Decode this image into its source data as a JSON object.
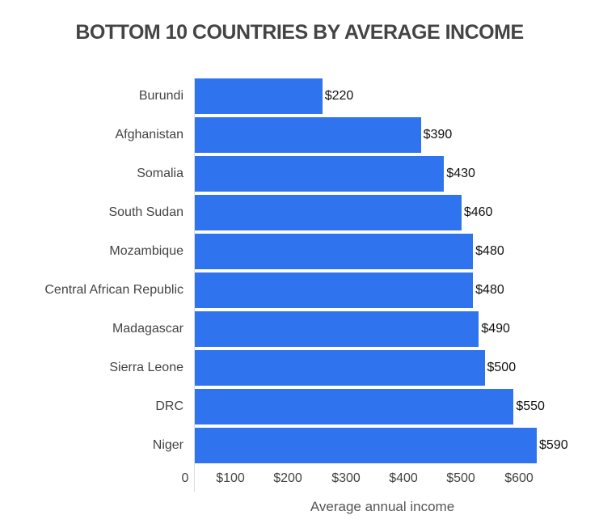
{
  "chart_data": {
    "type": "bar",
    "orientation": "horizontal",
    "title": "BOTTOM 10 COUNTRIES BY AVERAGE INCOME",
    "xlabel": "Average annual income",
    "ylabel": "",
    "categories": [
      "Burundi",
      "Afghanistan",
      "Somalia",
      "South Sudan",
      "Mozambique",
      "Central African Republic",
      "Madagascar",
      "Sierra Leone",
      "DRC",
      "Niger"
    ],
    "values": [
      220,
      390,
      430,
      460,
      480,
      480,
      490,
      500,
      550,
      590
    ],
    "value_labels": [
      "$220",
      "$390",
      "$430",
      "$460",
      "$480",
      "$480",
      "$490",
      "$500",
      "$550",
      "$590"
    ],
    "xticks": [
      "0",
      "$100",
      "$200",
      "$300",
      "$400",
      "$500",
      "$600"
    ],
    "xlim": [
      0,
      650
    ],
    "grid": false,
    "legend": null,
    "bar_color": "#2f73ee"
  }
}
